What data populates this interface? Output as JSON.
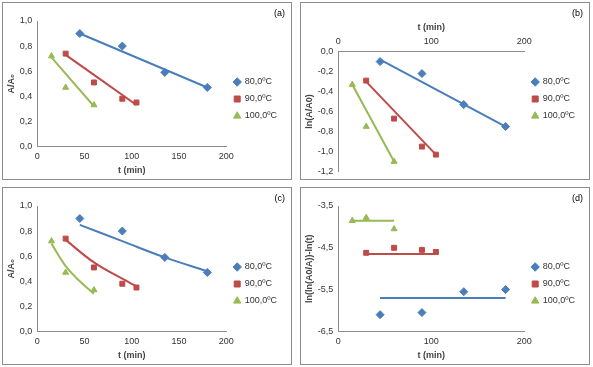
{
  "chart_data": [
    {
      "type": "scatter",
      "annotation": "(a)",
      "x_label": "t (min)",
      "y_label": "A/A₀",
      "xlim": [
        0,
        200
      ],
      "xticks": [
        0,
        50,
        100,
        150,
        200
      ],
      "ylim": [
        0,
        1
      ],
      "yticks": [
        {
          "value": 0,
          "label": "0,0"
        },
        {
          "value": 0.2,
          "label": "0,2"
        },
        {
          "value": 0.4,
          "label": "0,4"
        },
        {
          "value": 0.6,
          "label": "0,6"
        },
        {
          "value": 0.8,
          "label": "0,8"
        },
        {
          "value": 1,
          "label": "1,0"
        }
      ],
      "grid": false,
      "legend": "right",
      "series": [
        {
          "name": "80,0ºC",
          "color": "#4a7ebb",
          "marker": "diamond",
          "x": [
            45,
            90,
            135,
            180
          ],
          "values": [
            0.9,
            0.8,
            0.59,
            0.47
          ],
          "fit_x": [
            45,
            180
          ],
          "fit_values": [
            0.9,
            0.47
          ]
        },
        {
          "name": "90,0ºC",
          "color": "#be4b48",
          "marker": "square",
          "x": [
            30,
            60,
            90,
            105
          ],
          "values": [
            0.74,
            0.51,
            0.38,
            0.35
          ],
          "fit_x": [
            30,
            105
          ],
          "fit_values": [
            0.73,
            0.33
          ]
        },
        {
          "name": "100,0ºC",
          "color": "#98b954",
          "marker": "triangle",
          "x": [
            15,
            30,
            60
          ],
          "values": [
            0.72,
            0.47,
            0.33
          ],
          "fit_x": [
            15,
            60
          ],
          "fit_values": [
            0.71,
            0.32
          ]
        }
      ]
    },
    {
      "type": "scatter",
      "annotation": "(b)",
      "x_label": "t (min)",
      "y_label": "ln(A/A0)",
      "xlim": [
        0,
        200
      ],
      "xticks": [
        0,
        100,
        200
      ],
      "ylim": [
        -1.2,
        0
      ],
      "yticks": [
        {
          "value": -1.2,
          "label": "-1,2"
        },
        {
          "value": -1,
          "label": "-1,0"
        },
        {
          "value": -0.8,
          "label": "-0,8"
        },
        {
          "value": -0.6,
          "label": "-0,6"
        },
        {
          "value": -0.4,
          "label": "-0,4"
        },
        {
          "value": -0.2,
          "label": "-0,2"
        },
        {
          "value": 0,
          "label": "0,0"
        }
      ],
      "grid": false,
      "legend": "right",
      "series": [
        {
          "name": "80,0ºC",
          "color": "#4a7ebb",
          "marker": "diamond",
          "x": [
            45,
            90,
            135,
            180
          ],
          "values": [
            -0.1,
            -0.22,
            -0.53,
            -0.75
          ],
          "fit_x": [
            45,
            180
          ],
          "fit_values": [
            -0.08,
            -0.75
          ]
        },
        {
          "name": "90,0ºC",
          "color": "#be4b48",
          "marker": "square",
          "x": [
            30,
            60,
            90,
            105
          ],
          "values": [
            -0.29,
            -0.67,
            -0.95,
            -1.03
          ],
          "fit_x": [
            30,
            105
          ],
          "fit_values": [
            -0.3,
            -1.03
          ]
        },
        {
          "name": "100,0ºC",
          "color": "#98b954",
          "marker": "triangle",
          "x": [
            15,
            30,
            60
          ],
          "values": [
            -0.33,
            -0.75,
            -1.1
          ],
          "fit_x": [
            15,
            60
          ],
          "fit_values": [
            -0.33,
            -1.1
          ]
        }
      ]
    },
    {
      "type": "scatter",
      "annotation": "(c)",
      "x_label": "t (min)",
      "y_label": "A/A₀",
      "xlim": [
        0,
        200
      ],
      "xticks": [
        0,
        50,
        100,
        150,
        200
      ],
      "ylim": [
        0,
        1
      ],
      "yticks": [
        {
          "value": 0,
          "label": "0,0"
        },
        {
          "value": 0.2,
          "label": "0,2"
        },
        {
          "value": 0.4,
          "label": "0,4"
        },
        {
          "value": 0.6,
          "label": "0,6"
        },
        {
          "value": 0.8,
          "label": "0,8"
        },
        {
          "value": 1,
          "label": "1,0"
        }
      ],
      "grid": false,
      "legend": "right",
      "series": [
        {
          "name": "80,0ºC",
          "color": "#4a7ebb",
          "marker": "diamond",
          "x": [
            45,
            90,
            135,
            180
          ],
          "values": [
            0.9,
            0.8,
            0.59,
            0.47
          ],
          "fit_x": [
            45,
            90,
            135,
            180
          ],
          "fit_values": [
            0.85,
            0.72,
            0.59,
            0.48
          ]
        },
        {
          "name": "90,0ºC",
          "color": "#be4b48",
          "marker": "square",
          "x": [
            30,
            60,
            90,
            105
          ],
          "values": [
            0.74,
            0.51,
            0.38,
            0.35
          ],
          "fit_x": [
            30,
            60,
            90,
            105
          ],
          "fit_values": [
            0.73,
            0.55,
            0.42,
            0.36
          ]
        },
        {
          "name": "100,0ºC",
          "color": "#98b954",
          "marker": "triangle",
          "x": [
            15,
            30,
            60
          ],
          "values": [
            0.72,
            0.47,
            0.33
          ],
          "fit_x": [
            15,
            30,
            45,
            60
          ],
          "fit_values": [
            0.7,
            0.52,
            0.4,
            0.3
          ]
        }
      ]
    },
    {
      "type": "scatter",
      "annotation": "(d)",
      "x_label": "t (min)",
      "y_label": "ln(ln(A0/A))-ln(t)",
      "xlim": [
        0,
        200
      ],
      "xticks": [
        0,
        100,
        200
      ],
      "ylim": [
        -6.5,
        -3.5
      ],
      "yticks": [
        {
          "value": -6.5,
          "label": "-6,5"
        },
        {
          "value": -5.5,
          "label": "-5,5"
        },
        {
          "value": -4.5,
          "label": "-4,5"
        },
        {
          "value": -3.5,
          "label": "-3,5"
        }
      ],
      "grid": false,
      "legend": "right",
      "series": [
        {
          "name": "80,0ºC",
          "color": "#4a7ebb",
          "marker": "diamond",
          "x": [
            45,
            90,
            135,
            180
          ],
          "values": [
            -6.1,
            -6.05,
            -5.55,
            -5.5
          ],
          "fit_x": [
            45,
            180
          ],
          "fit_values": [
            -5.7,
            -5.7
          ]
        },
        {
          "name": "90,0ºC",
          "color": "#be4b48",
          "marker": "square",
          "x": [
            30,
            60,
            90,
            105
          ],
          "values": [
            -4.62,
            -4.5,
            -4.55,
            -4.6
          ],
          "fit_x": [
            30,
            105
          ],
          "fit_values": [
            -4.65,
            -4.65
          ]
        },
        {
          "name": "100,0ºC",
          "color": "#98b954",
          "marker": "triangle",
          "x": [
            15,
            30,
            60
          ],
          "values": [
            -3.85,
            -3.78,
            -4.05
          ],
          "fit_x": [
            15,
            60
          ],
          "fit_values": [
            -3.85,
            -3.85
          ]
        }
      ]
    }
  ]
}
